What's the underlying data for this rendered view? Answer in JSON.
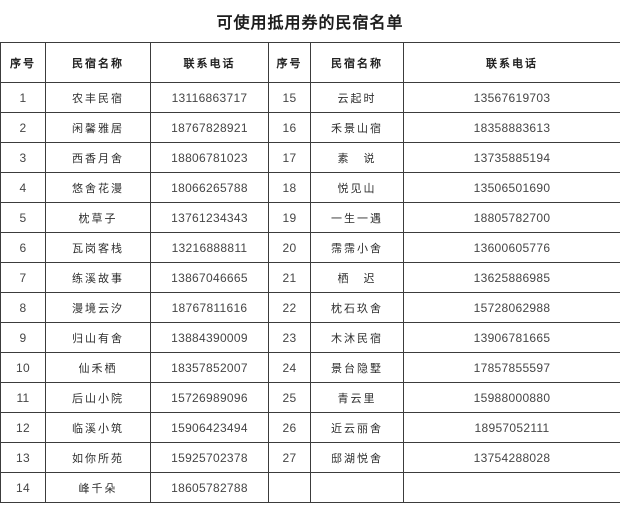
{
  "title": "可使用抵用券的民宿名单",
  "table": {
    "headers": [
      "序号",
      "民宿名称",
      "联系电话",
      "序号",
      "民宿名称",
      "联系电话"
    ],
    "rows": [
      {
        "no_left": "1",
        "name_left": "农丰民宿",
        "phone_left": "13116863717",
        "no_right": "15",
        "name_right": "云起时",
        "phone_right": "13567619703"
      },
      {
        "no_left": "2",
        "name_left": "闲馨雅居",
        "phone_left": "18767828921",
        "no_right": "16",
        "name_right": "禾景山宿",
        "phone_right": "18358883613"
      },
      {
        "no_left": "3",
        "name_left": "西香月舍",
        "phone_left": "18806781023",
        "no_right": "17",
        "name_right": "素　说",
        "phone_right": "13735885194"
      },
      {
        "no_left": "4",
        "name_left": "悠舍花漫",
        "phone_left": "18066265788",
        "no_right": "18",
        "name_right": "悦见山",
        "phone_right": "13506501690"
      },
      {
        "no_left": "5",
        "name_left": "枕草子",
        "phone_left": "13761234343",
        "no_right": "19",
        "name_right": "一生一遇",
        "phone_right": "18805782700"
      },
      {
        "no_left": "6",
        "name_left": "瓦岗客栈",
        "phone_left": "13216888811",
        "no_right": "20",
        "name_right": "霈霈小舍",
        "phone_right": "13600605776"
      },
      {
        "no_left": "7",
        "name_left": "练溪故事",
        "phone_left": "13867046665",
        "no_right": "21",
        "name_right": "栖　迟",
        "phone_right": "13625886985"
      },
      {
        "no_left": "8",
        "name_left": "漫境云汐",
        "phone_left": "18767811616",
        "no_right": "22",
        "name_right": "枕石玖舍",
        "phone_right": "15728062988"
      },
      {
        "no_left": "9",
        "name_left": "归山有舍",
        "phone_left": "13884390009",
        "no_right": "23",
        "name_right": "木沐民宿",
        "phone_right": "13906781665"
      },
      {
        "no_left": "10",
        "name_left": "仙禾栖",
        "phone_left": "18357852007",
        "no_right": "24",
        "name_right": "景台隐墅",
        "phone_right": "17857855597"
      },
      {
        "no_left": "11",
        "name_left": "后山小院",
        "phone_left": "15726989096",
        "no_right": "25",
        "name_right": "青云里",
        "phone_right": "15988000880"
      },
      {
        "no_left": "12",
        "name_left": "临溪小筑",
        "phone_left": "15906423494",
        "no_right": "26",
        "name_right": "近云丽舍",
        "phone_right": "18957052111"
      },
      {
        "no_left": "13",
        "name_left": "如你所苑",
        "phone_left": "15925702378",
        "no_right": "27",
        "name_right": "邸湖悦舍",
        "phone_right": "13754288028"
      },
      {
        "no_left": "14",
        "name_left": "峰千朵",
        "phone_left": "18605782788",
        "no_right": "",
        "name_right": "",
        "phone_right": ""
      }
    ]
  }
}
